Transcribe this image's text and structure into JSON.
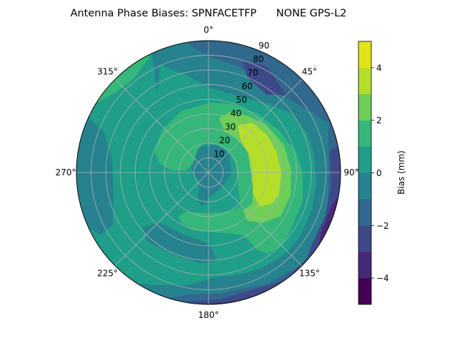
{
  "chart_data": {
    "type": "polar-contour",
    "title": "Antenna Phase Biases: SPNFACETFP      NONE GPS-L2",
    "angular_direction": "clockwise",
    "angular_zero": "top",
    "angular_ticks": [
      "0°",
      "45°",
      "90°",
      "135°",
      "180°",
      "225°",
      "270°",
      "315°"
    ],
    "angular_tick_values": [
      0,
      45,
      90,
      135,
      180,
      225,
      270,
      315
    ],
    "radial_ticks": [
      "10",
      "20",
      "30",
      "40",
      "50",
      "60",
      "70",
      "80",
      "90"
    ],
    "radial_tick_values": [
      10,
      20,
      30,
      40,
      50,
      60,
      70,
      80,
      90
    ],
    "radial_range": [
      0,
      90
    ],
    "radial_label_angle": 22.5,
    "grid": true,
    "colorbar": {
      "label": "Bias (mm)",
      "levels": [
        -5,
        -4,
        -3,
        -2,
        -1,
        0,
        1,
        2,
        3,
        4,
        5
      ],
      "colors": [
        "#440154",
        "#482878",
        "#3e4989",
        "#31688e",
        "#26828e",
        "#1f9e89",
        "#35b779",
        "#6ece58",
        "#b5de2b",
        "#e2e418"
      ],
      "ticks": [
        "4",
        "2",
        "0",
        "−2",
        "−4"
      ],
      "tick_values": [
        4,
        2,
        0,
        -2,
        -4
      ],
      "colormap": "viridis"
    },
    "background_band": [
      0,
      1
    ],
    "regions": [
      {
        "band": [
          -1,
          0
        ],
        "points": [
          [
            335,
            92
          ],
          [
            328,
            66
          ],
          [
            336,
            81
          ],
          [
            348,
            67.5
          ],
          [
            1,
            58
          ],
          [
            21,
            56
          ],
          [
            40,
            62
          ],
          [
            54,
            69
          ],
          [
            68,
            72.6
          ],
          [
            80,
            73
          ],
          [
            95,
            74
          ],
          [
            110,
            75
          ],
          [
            125,
            76.4
          ],
          [
            138,
            76.5
          ],
          [
            151,
            74.7
          ],
          [
            164,
            73
          ],
          [
            177,
            71.7
          ],
          [
            190,
            78
          ],
          [
            205,
            85
          ],
          [
            215,
            92
          ],
          [
            200,
            92
          ],
          [
            185,
            92
          ],
          [
            170,
            92
          ],
          [
            155,
            92
          ],
          [
            140,
            92
          ],
          [
            125,
            92
          ],
          [
            110,
            92
          ],
          [
            95,
            92
          ],
          [
            80,
            92
          ],
          [
            65,
            92
          ],
          [
            50,
            92
          ],
          [
            35,
            92
          ],
          [
            20,
            92
          ],
          [
            5,
            92
          ],
          [
            350,
            92
          ]
        ]
      },
      {
        "band": [
          -2,
          -1
        ],
        "points": [
          [
            350,
            92
          ],
          [
            353,
            86
          ],
          [
            0.6,
            79
          ],
          [
            15.6,
            75.4
          ],
          [
            31,
            71.3
          ],
          [
            45.7,
            73.7
          ],
          [
            58.8,
            80.6
          ],
          [
            67.6,
            88.5
          ],
          [
            80,
            83
          ],
          [
            106,
            85
          ],
          [
            123,
            87.6
          ],
          [
            130,
            92
          ],
          [
            152,
            86
          ],
          [
            175,
            83
          ],
          [
            190,
            85
          ],
          [
            200,
            92
          ],
          [
            185,
            92
          ],
          [
            170,
            92
          ],
          [
            155,
            92
          ],
          [
            140,
            92
          ],
          [
            125,
            92
          ],
          [
            110,
            92
          ],
          [
            95,
            92
          ],
          [
            80,
            92
          ],
          [
            65,
            92
          ],
          [
            50,
            92
          ],
          [
            35,
            92
          ],
          [
            20,
            92
          ],
          [
            5,
            92
          ]
        ]
      },
      {
        "band": [
          -3,
          -2
        ],
        "points": [
          [
            17,
            79.4
          ],
          [
            28.7,
            82.7
          ],
          [
            44.7,
            74.9
          ],
          [
            36.7,
            66.4
          ],
          [
            22.5,
            69.8
          ]
        ]
      },
      {
        "band": [
          -3,
          -2
        ],
        "points": [
          [
            78,
            92
          ],
          [
            80,
            84
          ],
          [
            95,
            84
          ],
          [
            110,
            85
          ],
          [
            125,
            86
          ],
          [
            135,
            92
          ],
          [
            140,
            92
          ],
          [
            150,
            88
          ],
          [
            175,
            87
          ],
          [
            195,
            92
          ],
          [
            180,
            92
          ],
          [
            165,
            92
          ],
          [
            150,
            92
          ],
          [
            120,
            92
          ],
          [
            100,
            92
          ]
        ]
      },
      {
        "band": [
          -4,
          -3
        ],
        "points": [
          [
            98,
            92
          ],
          [
            105,
            87
          ],
          [
            118,
            87
          ],
          [
            126,
            92
          ],
          [
            112,
            92
          ]
        ]
      },
      {
        "band": [
          -1,
          0
        ],
        "points": [
          [
            296,
            92
          ],
          [
            294,
            87.6
          ],
          [
            292,
            77.6
          ],
          [
            278,
            66.3
          ],
          [
            257,
            66.5
          ],
          [
            241,
            74.8
          ],
          [
            240,
            85
          ],
          [
            247,
            92
          ],
          [
            260,
            92
          ],
          [
            275,
            92
          ],
          [
            288,
            92
          ]
        ]
      },
      {
        "band": [
          -1,
          0
        ],
        "points": [
          [
            230,
            58.3
          ],
          [
            224,
            47.8
          ],
          [
            202,
            45.8
          ],
          [
            179,
            48.9
          ],
          [
            174.6,
            60.6
          ],
          [
            185,
            62.2
          ],
          [
            204,
            60.8
          ],
          [
            221,
            62.8
          ]
        ]
      },
      {
        "band": [
          1,
          2
        ],
        "points": [
          [
            300,
            92
          ],
          [
            310,
            84
          ],
          [
            322,
            82
          ],
          [
            332,
            88
          ],
          [
            335,
            92
          ],
          [
            318,
            92
          ]
        ]
      },
      {
        "band": [
          -1,
          0
        ],
        "points": [
          [
            342,
            18.4
          ],
          [
            21,
            20.5
          ],
          [
            47.6,
            18.7
          ],
          [
            91,
            15.4
          ],
          [
            138,
            13.4
          ],
          [
            177,
            16.5
          ],
          [
            190,
            23.4
          ],
          [
            200,
            21.1
          ],
          [
            220,
            8.9
          ],
          [
            268,
            10.5
          ],
          [
            297,
            13.7
          ]
        ]
      },
      {
        "band": [
          1,
          2
        ],
        "points": [
          [
            291,
            39.2
          ],
          [
            312,
            42.8
          ],
          [
            336,
            45.8
          ],
          [
            1,
            47.5
          ],
          [
            18,
            49.2
          ],
          [
            39.5,
            52.1
          ],
          [
            59,
            55.8
          ],
          [
            76,
            60.9
          ],
          [
            90,
            64
          ],
          [
            107,
            67
          ],
          [
            125,
            68.3
          ],
          [
            136,
            70.7
          ],
          [
            144,
            68.2
          ],
          [
            148,
            61.9
          ],
          [
            148.5,
            57.4
          ],
          [
            151,
            48.6
          ],
          [
            170,
            41.5
          ],
          [
            193,
            40.2
          ],
          [
            208,
            39.1
          ],
          [
            214.5,
            35.8
          ],
          [
            209.6,
            31.2
          ],
          [
            178,
            27.9
          ],
          [
            149.6,
            30.5
          ],
          [
            136.4,
            31.8
          ],
          [
            116,
            22.6
          ],
          [
            71.6,
            19.6
          ],
          [
            44,
            19.9
          ],
          [
            16.6,
            19.9
          ],
          [
            353,
            20.8
          ],
          [
            335,
            17.5
          ],
          [
            300.5,
            12.2
          ],
          [
            275,
            15.5
          ],
          [
            273,
            25.1
          ],
          [
            280.6,
            33.8
          ]
        ]
      },
      {
        "band": [
          2,
          3
        ],
        "points": [
          [
            11,
            37.7
          ],
          [
            18.6,
            43.3
          ],
          [
            34.7,
            46.9
          ],
          [
            51,
            51
          ],
          [
            69.5,
            54.5
          ],
          [
            87,
            56
          ],
          [
            105,
            57.9
          ],
          [
            121,
            57.5
          ],
          [
            133,
            50.1
          ],
          [
            141,
            42.2
          ],
          [
            138,
            35.3
          ],
          [
            125.5,
            36.8
          ],
          [
            103,
            30.8
          ],
          [
            62,
            30.3
          ],
          [
            42,
            30.2
          ],
          [
            20,
            30.7
          ]
        ]
      },
      {
        "band": [
          3,
          4
        ],
        "points": [
          [
            32,
            38
          ],
          [
            41.7,
            45.1
          ],
          [
            57,
            47.2
          ],
          [
            73,
            48.4
          ],
          [
            90,
            49.4
          ],
          [
            107,
            50.1
          ],
          [
            116.5,
            48
          ],
          [
            123.5,
            41.7
          ],
          [
            116,
            34.2
          ],
          [
            93.6,
            30
          ],
          [
            65.5,
            30.3
          ],
          [
            44,
            31.3
          ]
        ]
      }
    ]
  }
}
